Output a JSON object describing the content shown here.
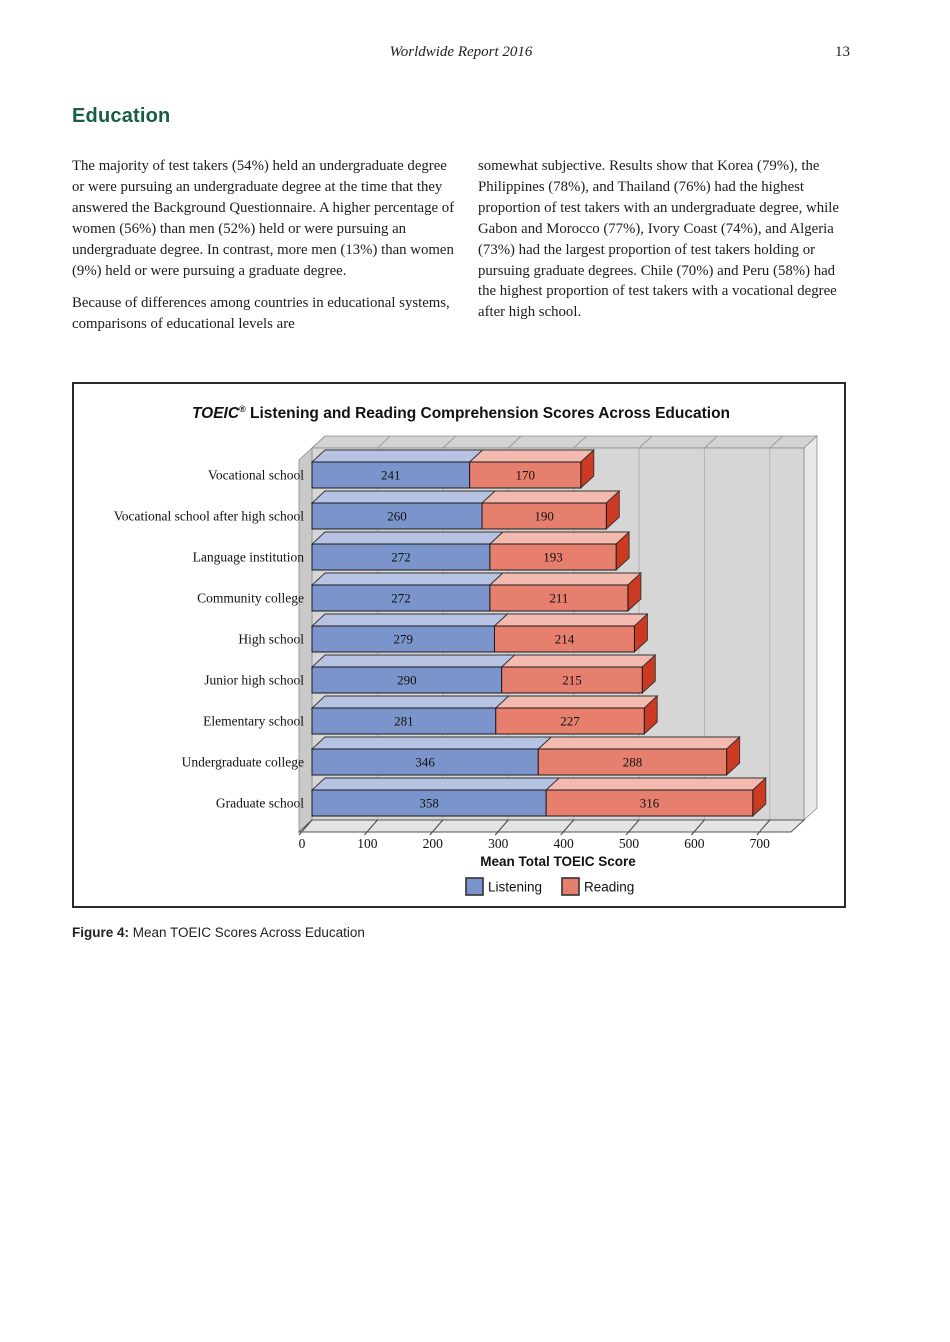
{
  "page": {
    "header_title": "Worldwide Report 2016",
    "page_number": "13"
  },
  "section": {
    "heading": "Education"
  },
  "columns": {
    "left": {
      "p1": "The majority of test takers (54%) held an undergraduate degree or were pursuing an undergraduate degree at the time that they answered the Background Questionnaire. A higher percentage of women (56%) than men (52%) held or were pursuing an undergraduate degree. In contrast, more men (13%) than women (9%) held or were pursuing a graduate degree.",
      "p2": "Because of differences among countries in educational systems, comparisons of educational levels are"
    },
    "right": {
      "p1": "somewhat subjective. Results show that Korea (79%), the Philippines (78%), and Thailand (76%) had the highest proportion of test takers with an undergraduate degree, while Gabon and Morocco (77%), Ivory Coast (74%), and Algeria (73%) had the largest proportion of test takers holding or pursuing graduate degrees. Chile (70%) and Peru (58%) had the highest proportion of test takers with a vocational degree after high school."
    }
  },
  "figure": {
    "caption_label": "Figure 4:",
    "caption_text": " Mean TOEIC Scores Across Education"
  },
  "chart_data": {
    "type": "bar",
    "variant": "3d-horizontal-stacked",
    "title": {
      "brand": "TOEIC",
      "registered": "®",
      "rest": " Listening and Reading Comprehension Scores Across Education"
    },
    "categories": [
      "Vocational school",
      "Vocational school after high school",
      "Language institution",
      "Community college",
      "High school",
      "Junior high school",
      "Elementary school",
      "Undergraduate college",
      "Graduate school"
    ],
    "series": [
      {
        "name": "Listening",
        "values": [
          241,
          260,
          272,
          272,
          279,
          290,
          281,
          346,
          358
        ],
        "color_front": "#7b95cc",
        "color_top": "#b6c3e3",
        "color_side": "#4f6cb0"
      },
      {
        "name": "Reading",
        "values": [
          170,
          190,
          193,
          211,
          214,
          215,
          227,
          288,
          316
        ],
        "color_front": "#e77f6e",
        "color_top": "#f4bab0",
        "color_side": "#cb3a21"
      }
    ],
    "xlabel": "Mean Total TOEIC Score",
    "xlim": [
      0,
      700
    ],
    "xticks": [
      0,
      100,
      200,
      300,
      400,
      500,
      600,
      700
    ],
    "legend": [
      "Listening",
      "Reading"
    ],
    "legend_position": "bottom",
    "grid": "vertical",
    "wall_color": "#d6d6d6",
    "grid_color": "#b3b3b3"
  }
}
